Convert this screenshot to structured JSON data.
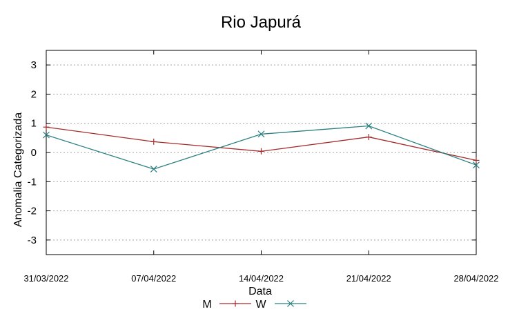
{
  "chart_data": {
    "type": "line",
    "title": "Rio Japurá",
    "xlabel": "Data",
    "ylabel": "Anomalia Categorizada",
    "categories": [
      "31/03/2022",
      "07/04/2022",
      "14/04/2022",
      "21/04/2022",
      "28/04/2022"
    ],
    "ylim": [
      -3.5,
      3.5
    ],
    "yticks": [
      -3,
      -2,
      -1,
      0,
      1,
      2,
      3
    ],
    "grid": true,
    "legend": "bottom",
    "series": [
      {
        "name": "M",
        "color": "#a52a2a",
        "marker": "plus",
        "values": [
          0.87,
          0.37,
          0.04,
          0.53,
          -0.27
        ]
      },
      {
        "name": "W",
        "color": "#2a7f7f",
        "marker": "cross",
        "values": [
          0.6,
          -0.57,
          0.63,
          0.91,
          -0.43
        ]
      }
    ]
  }
}
